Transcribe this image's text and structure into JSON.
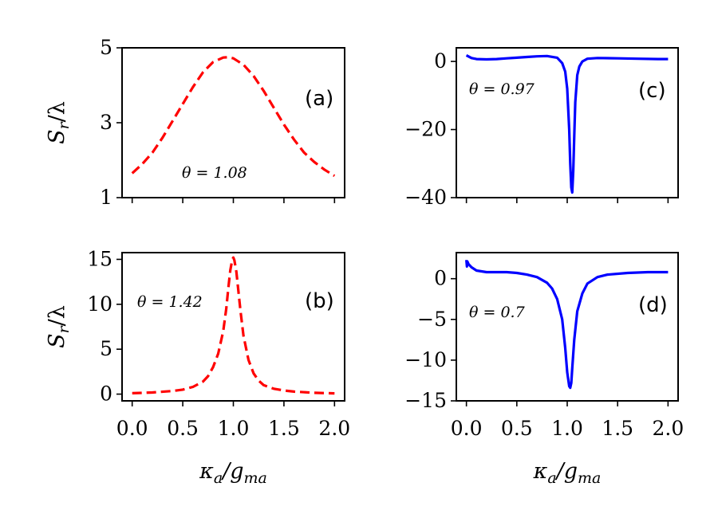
{
  "chart_data": [
    {
      "id": "a",
      "type": "line",
      "panel_label": "(a)",
      "annotation": "θ = 1.08",
      "annotation_pos": "bottom-center",
      "line_color": "#ff0000",
      "line_style": "dashed",
      "ylabel": "S_r/λ",
      "ylabel_display": "S",
      "ylabel_sub": "r",
      "ylabel_tail": "/λ",
      "xlabel": "",
      "xlim": [
        -0.1,
        2.1
      ],
      "ylim": [
        1,
        5
      ],
      "yticks": [
        1,
        3,
        5
      ],
      "ytick_labels": [
        "1",
        "3",
        "5"
      ],
      "xticks": [
        0,
        0.5,
        1,
        1.5,
        2
      ],
      "xtick_labels": [],
      "x": [
        0,
        0.1,
        0.2,
        0.3,
        0.4,
        0.5,
        0.6,
        0.7,
        0.8,
        0.9,
        0.95,
        1.0,
        1.1,
        1.2,
        1.3,
        1.4,
        1.5,
        1.6,
        1.7,
        1.8,
        1.9,
        2.0
      ],
      "y": [
        1.65,
        1.9,
        2.2,
        2.6,
        3.05,
        3.5,
        3.95,
        4.35,
        4.62,
        4.74,
        4.75,
        4.72,
        4.55,
        4.25,
        3.85,
        3.4,
        2.95,
        2.55,
        2.2,
        1.95,
        1.75,
        1.58
      ]
    },
    {
      "id": "b",
      "type": "line",
      "panel_label": "(b)",
      "annotation": "θ = 1.42",
      "annotation_pos": "top-left",
      "line_color": "#ff0000",
      "line_style": "dashed",
      "ylabel": "S_r/λ",
      "ylabel_display": "S",
      "ylabel_sub": "r",
      "ylabel_tail": "/λ",
      "xlabel": "κ_a/g_ma",
      "xlabel_display": "κ",
      "xlabel_sub1": "a",
      "xlabel_mid": "/g",
      "xlabel_sub2": "ma",
      "xlim": [
        -0.1,
        2.1
      ],
      "ylim": [
        -0.75,
        15.75
      ],
      "yticks": [
        0,
        5,
        10,
        15
      ],
      "ytick_labels": [
        "0",
        "5",
        "10",
        "15"
      ],
      "xticks": [
        0,
        0.5,
        1,
        1.5,
        2
      ],
      "xtick_labels": [
        "0.0",
        "0.5",
        "1.0",
        "1.5",
        "2.0"
      ],
      "x": [
        0,
        0.2,
        0.4,
        0.5,
        0.6,
        0.7,
        0.75,
        0.8,
        0.85,
        0.9,
        0.93,
        0.95,
        0.97,
        0.99,
        1.0,
        1.01,
        1.03,
        1.05,
        1.07,
        1.1,
        1.15,
        1.2,
        1.25,
        1.3,
        1.4,
        1.5,
        1.6,
        1.8,
        2.0
      ],
      "y": [
        0.1,
        0.18,
        0.35,
        0.5,
        0.8,
        1.4,
        2.0,
        3.0,
        4.5,
        7.0,
        9.5,
        11.8,
        13.8,
        15.0,
        15.2,
        14.9,
        13.6,
        11.5,
        9.3,
        6.5,
        3.8,
        2.3,
        1.5,
        1.0,
        0.6,
        0.4,
        0.28,
        0.15,
        0.08
      ]
    },
    {
      "id": "c",
      "type": "line",
      "panel_label": "(c)",
      "annotation": "θ = 0.97",
      "annotation_pos": "top-left",
      "line_color": "#0000ff",
      "line_style": "solid",
      "ylabel": "",
      "xlabel": "",
      "xlim": [
        -0.1,
        2.1
      ],
      "ylim": [
        -40,
        4
      ],
      "yticks": [
        -40,
        -20,
        0
      ],
      "ytick_labels": [
        "−40",
        "−20",
        "0"
      ],
      "xticks": [
        0,
        0.5,
        1,
        1.5,
        2
      ],
      "xtick_labels": [],
      "x": [
        0,
        0.05,
        0.1,
        0.2,
        0.3,
        0.4,
        0.5,
        0.6,
        0.7,
        0.8,
        0.9,
        0.95,
        0.98,
        1.0,
        1.02,
        1.03,
        1.04,
        1.05,
        1.06,
        1.07,
        1.08,
        1.1,
        1.12,
        1.15,
        1.2,
        1.3,
        1.5,
        1.7,
        1.9,
        2.0
      ],
      "y": [
        1.8,
        1.0,
        0.7,
        0.6,
        0.7,
        0.9,
        1.1,
        1.3,
        1.5,
        1.6,
        1.1,
        -0.5,
        -3.0,
        -8.0,
        -20.0,
        -30.0,
        -37.0,
        -38.5,
        -32.0,
        -22.0,
        -12.0,
        -4.0,
        -1.5,
        0.0,
        0.8,
        1.0,
        0.9,
        0.8,
        0.7,
        0.7
      ]
    },
    {
      "id": "d",
      "type": "line",
      "panel_label": "(d)",
      "annotation": "θ = 0.7",
      "annotation_pos": "mid-left",
      "line_color": "#0000ff",
      "line_style": "solid",
      "ylabel": "",
      "xlabel": "κ_a/g_ma",
      "xlabel_display": "κ",
      "xlabel_sub1": "a",
      "xlabel_mid": "/g",
      "xlabel_sub2": "ma",
      "xlim": [
        -0.1,
        2.1
      ],
      "ylim": [
        -15,
        3.2
      ],
      "yticks": [
        -15,
        -10,
        -5,
        0
      ],
      "ytick_labels": [
        "−15",
        "−10",
        "−5",
        "0"
      ],
      "xticks": [
        0,
        0.5,
        1,
        1.5,
        2
      ],
      "xtick_labels": [
        "0.0",
        "0.5",
        "1.0",
        "1.5",
        "2.0"
      ],
      "x": [
        0,
        0.005,
        0.01,
        0.02,
        0.05,
        0.1,
        0.2,
        0.3,
        0.4,
        0.5,
        0.6,
        0.7,
        0.8,
        0.85,
        0.9,
        0.95,
        0.98,
        1.0,
        1.02,
        1.03,
        1.04,
        1.05,
        1.07,
        1.1,
        1.15,
        1.2,
        1.3,
        1.4,
        1.6,
        1.8,
        2.0
      ],
      "y": [
        2.3,
        1.5,
        2.1,
        1.8,
        1.4,
        1.0,
        0.8,
        0.8,
        0.8,
        0.7,
        0.5,
        0.2,
        -0.5,
        -1.2,
        -2.5,
        -5.0,
        -8.5,
        -11.5,
        -13.2,
        -13.4,
        -12.8,
        -11.0,
        -7.5,
        -4.0,
        -1.8,
        -0.6,
        0.2,
        0.5,
        0.7,
        0.8,
        0.8
      ]
    }
  ]
}
